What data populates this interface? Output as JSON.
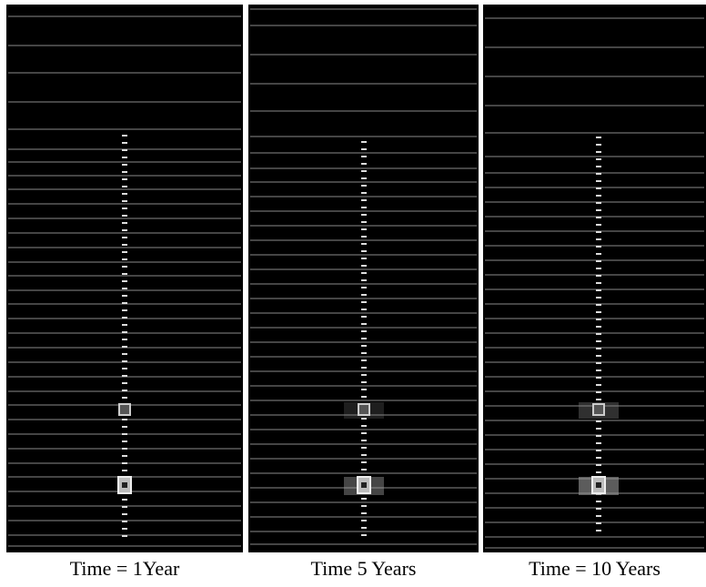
{
  "panels": [
    {
      "caption": "Time = 1Year"
    },
    {
      "caption": "Time 5 Years"
    },
    {
      "caption": "Time = 10 Years"
    }
  ]
}
